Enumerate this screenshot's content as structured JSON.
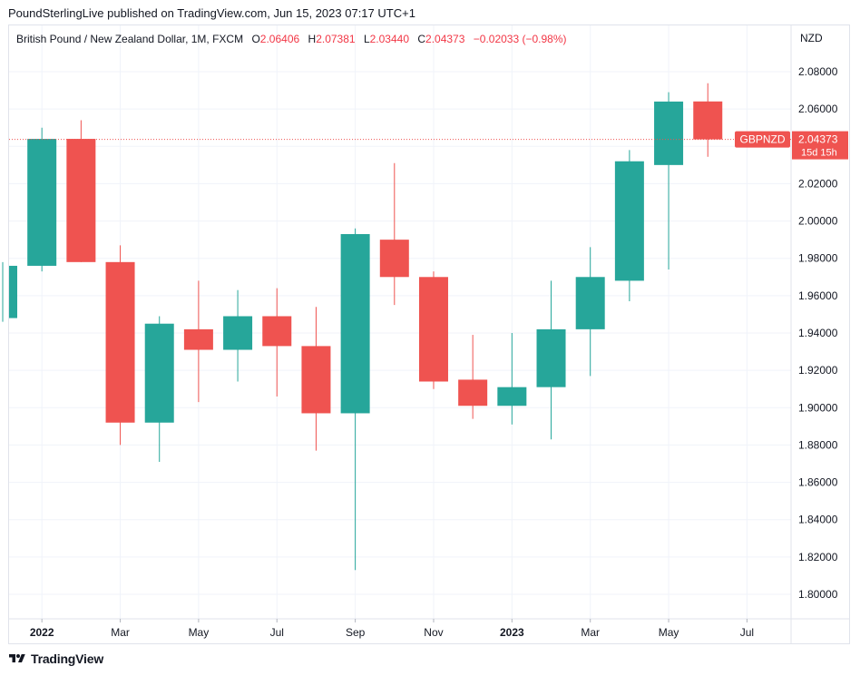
{
  "header": {
    "publisher_line": "PoundSterlingLive published on TradingView.com, Jun 15, 2023 07:17 UTC+1"
  },
  "legend": {
    "symbol": "British Pound / New Zealand Dollar, 1M, FXCM",
    "o_label": "O",
    "o_value": "2.06406",
    "h_label": "H",
    "h_value": "2.07381",
    "l_label": "L",
    "l_value": "2.03440",
    "c_label": "C",
    "c_value": "2.04373",
    "change": "−0.02033 (−0.98%)"
  },
  "price_axis": {
    "currency": "NZD"
  },
  "last_price": {
    "ticker": "GBPNZD",
    "price": "2.04373",
    "countdown": "15d 15h"
  },
  "footer": {
    "brand": "TradingView"
  },
  "colors": {
    "up": "#26a69a",
    "down": "#ef5350",
    "grid": "#f0f3fa",
    "text": "#131722"
  },
  "chart_data": {
    "type": "candlestick",
    "interval": "1M",
    "ylim": [
      1.78,
      2.09
    ],
    "y_ticks": [
      "2.08000",
      "2.06000",
      "2.04000",
      "2.02000",
      "2.00000",
      "1.98000",
      "1.96000",
      "1.94000",
      "1.92000",
      "1.90000",
      "1.88000",
      "1.86000",
      "1.84000",
      "1.82000",
      "1.80000"
    ],
    "x_labels": [
      {
        "label": "2022",
        "index": 1,
        "bold": true
      },
      {
        "label": "Mar",
        "index": 3,
        "bold": false
      },
      {
        "label": "May",
        "index": 5,
        "bold": false
      },
      {
        "label": "Jul",
        "index": 7,
        "bold": false
      },
      {
        "label": "Sep",
        "index": 9,
        "bold": false
      },
      {
        "label": "Nov",
        "index": 11,
        "bold": false
      },
      {
        "label": "2023",
        "index": 13,
        "bold": true
      },
      {
        "label": "Mar",
        "index": 15,
        "bold": false
      },
      {
        "label": "May",
        "index": 17,
        "bold": false
      },
      {
        "label": "Jul",
        "index": 19,
        "bold": false
      }
    ],
    "candles": [
      {
        "period": "Dec 2021",
        "open": 1.948,
        "high": 1.978,
        "low": 1.946,
        "close": 1.976
      },
      {
        "period": "Jan 2022",
        "open": 1.976,
        "high": 2.05,
        "low": 1.973,
        "close": 2.044
      },
      {
        "period": "Feb 2022",
        "open": 2.044,
        "high": 2.054,
        "low": 1.978,
        "close": 1.978
      },
      {
        "period": "Mar 2022",
        "open": 1.978,
        "high": 1.987,
        "low": 1.88,
        "close": 1.892
      },
      {
        "period": "Apr 2022",
        "open": 1.892,
        "high": 1.949,
        "low": 1.871,
        "close": 1.945
      },
      {
        "period": "May 2022",
        "open": 1.942,
        "high": 1.968,
        "low": 1.903,
        "close": 1.931
      },
      {
        "period": "Jun 2022",
        "open": 1.931,
        "high": 1.963,
        "low": 1.914,
        "close": 1.949
      },
      {
        "period": "Jul 2022",
        "open": 1.949,
        "high": 1.964,
        "low": 1.906,
        "close": 1.933
      },
      {
        "period": "Aug 2022",
        "open": 1.933,
        "high": 1.954,
        "low": 1.877,
        "close": 1.897
      },
      {
        "period": "Sep 2022",
        "open": 1.897,
        "high": 1.996,
        "low": 1.813,
        "close": 1.993
      },
      {
        "period": "Oct 2022",
        "open": 1.99,
        "high": 2.031,
        "low": 1.955,
        "close": 1.97
      },
      {
        "period": "Nov 2022",
        "open": 1.97,
        "high": 1.973,
        "low": 1.91,
        "close": 1.914
      },
      {
        "period": "Dec 2022",
        "open": 1.915,
        "high": 1.939,
        "low": 1.894,
        "close": 1.901
      },
      {
        "period": "Jan 2023",
        "open": 1.901,
        "high": 1.94,
        "low": 1.891,
        "close": 1.911
      },
      {
        "period": "Feb 2023",
        "open": 1.911,
        "high": 1.968,
        "low": 1.883,
        "close": 1.942
      },
      {
        "period": "Mar 2023",
        "open": 1.942,
        "high": 1.986,
        "low": 1.917,
        "close": 1.97
      },
      {
        "period": "Apr 2023",
        "open": 1.968,
        "high": 2.038,
        "low": 1.957,
        "close": 2.032
      },
      {
        "period": "May 2023",
        "open": 2.03,
        "high": 2.069,
        "low": 1.974,
        "close": 2.064
      },
      {
        "period": "Jun 2023",
        "open": 2.06406,
        "high": 2.07381,
        "low": 2.0344,
        "close": 2.04373
      }
    ]
  }
}
